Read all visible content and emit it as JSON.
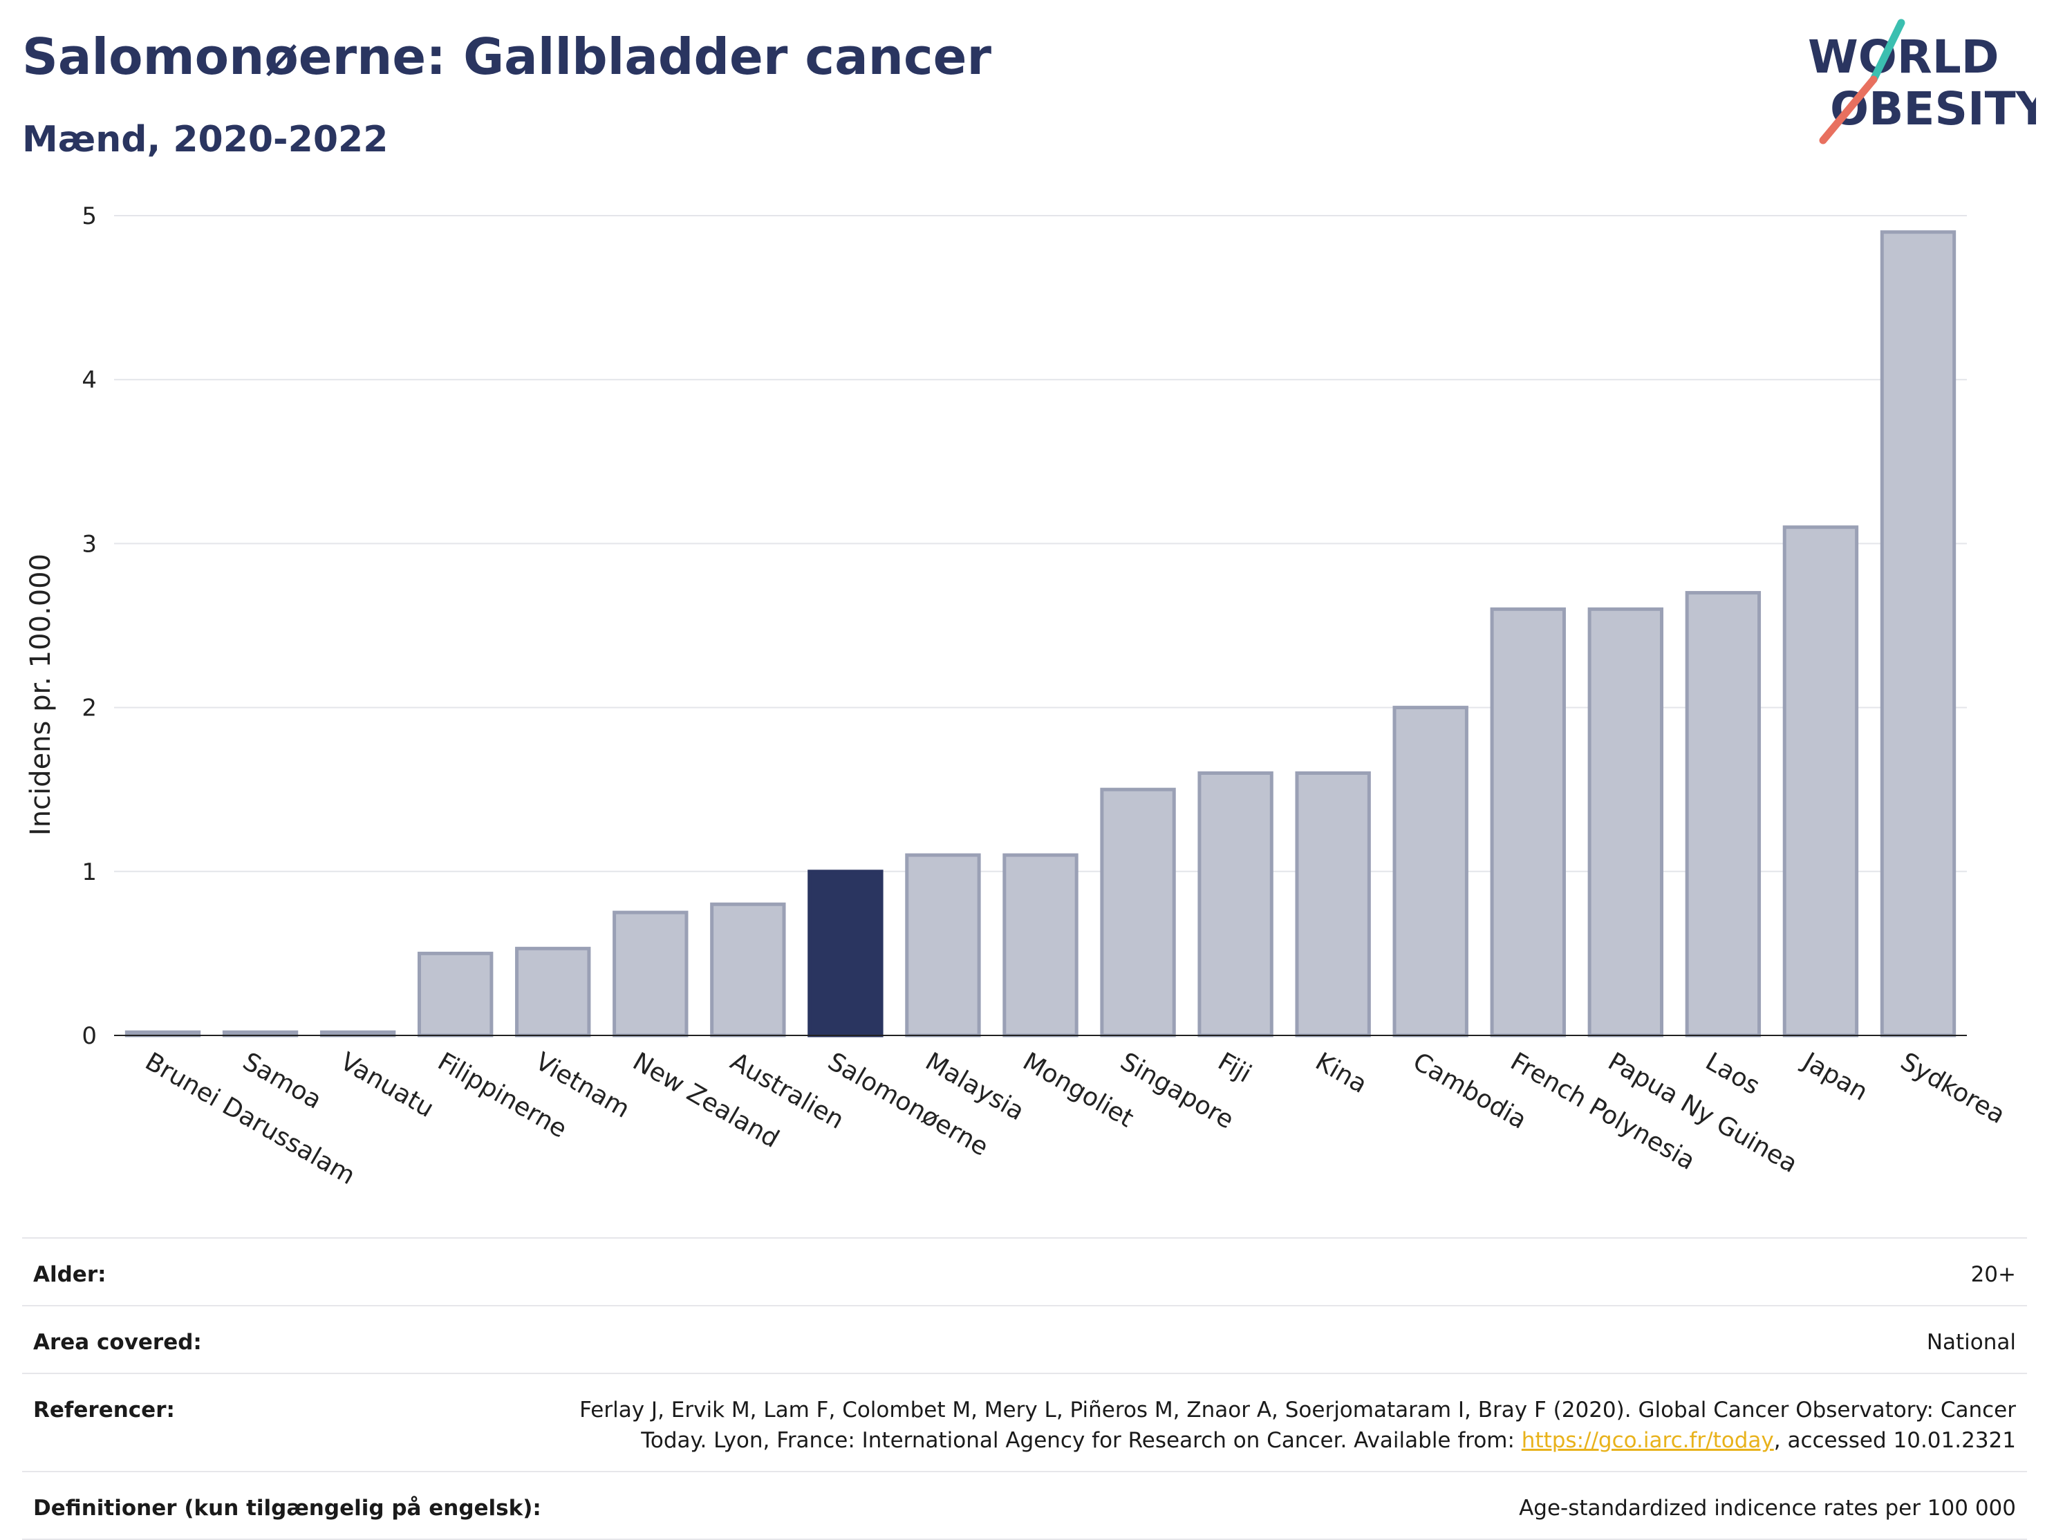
{
  "header": {
    "title": "Salomonøerne: Gallbladder cancer",
    "subtitle": "Mænd, 2020-2022"
  },
  "logo": {
    "line1": "WORLD",
    "line2": "OBESITY",
    "colors": {
      "text": "#2a3560",
      "slash_teal": "#3bbfb0",
      "slash_coral": "#e8705f"
    }
  },
  "chart_data": {
    "type": "bar",
    "ylabel": "Incidens pr. 100.000",
    "ylim": [
      0,
      5
    ],
    "yticks": [
      0,
      1,
      2,
      3,
      4,
      5
    ],
    "grid": true,
    "highlight": "Salomonøerne",
    "colors": {
      "bar": "#bfc3d0",
      "bar_edge": "#9aa0b5",
      "highlight": "#2a3560"
    },
    "categories": [
      "Brunei Darussalam",
      "Samoa",
      "Vanuatu",
      "Filippinerne",
      "Vietnam",
      "New Zealand",
      "Australien",
      "Salomonøerne",
      "Malaysia",
      "Mongoliet",
      "Singapore",
      "Fiji",
      "Kina",
      "Cambodia",
      "French Polynesia",
      "Papua Ny Guinea",
      "Laos",
      "Japan",
      "Sydkorea"
    ],
    "values": [
      0.02,
      0.02,
      0.02,
      0.5,
      0.53,
      0.75,
      0.8,
      1.0,
      1.1,
      1.1,
      1.5,
      1.6,
      1.6,
      2.0,
      2.6,
      2.6,
      2.7,
      3.1,
      4.9
    ]
  },
  "info": {
    "rows": [
      {
        "key": "Alder:",
        "value": "20+"
      },
      {
        "key": "Area covered:",
        "value": "National"
      },
      {
        "key": "Referencer:",
        "value_before": "Ferlay J, Ervik M, Lam F, Colombet M, Mery L, Piñeros M, Znaor A, Soerjomataram I, Bray F (2020). Global Cancer Observatory: Cancer Today. Lyon, France: International Agency for Research on Cancer. Available from: ",
        "link": "https://gco.iarc.fr/today",
        "value_after": ", accessed 10.01.2321"
      },
      {
        "key": "Definitioner (kun tilgængelig på engelsk):",
        "value": "Age-standardized indicence rates per 100 000"
      }
    ]
  }
}
